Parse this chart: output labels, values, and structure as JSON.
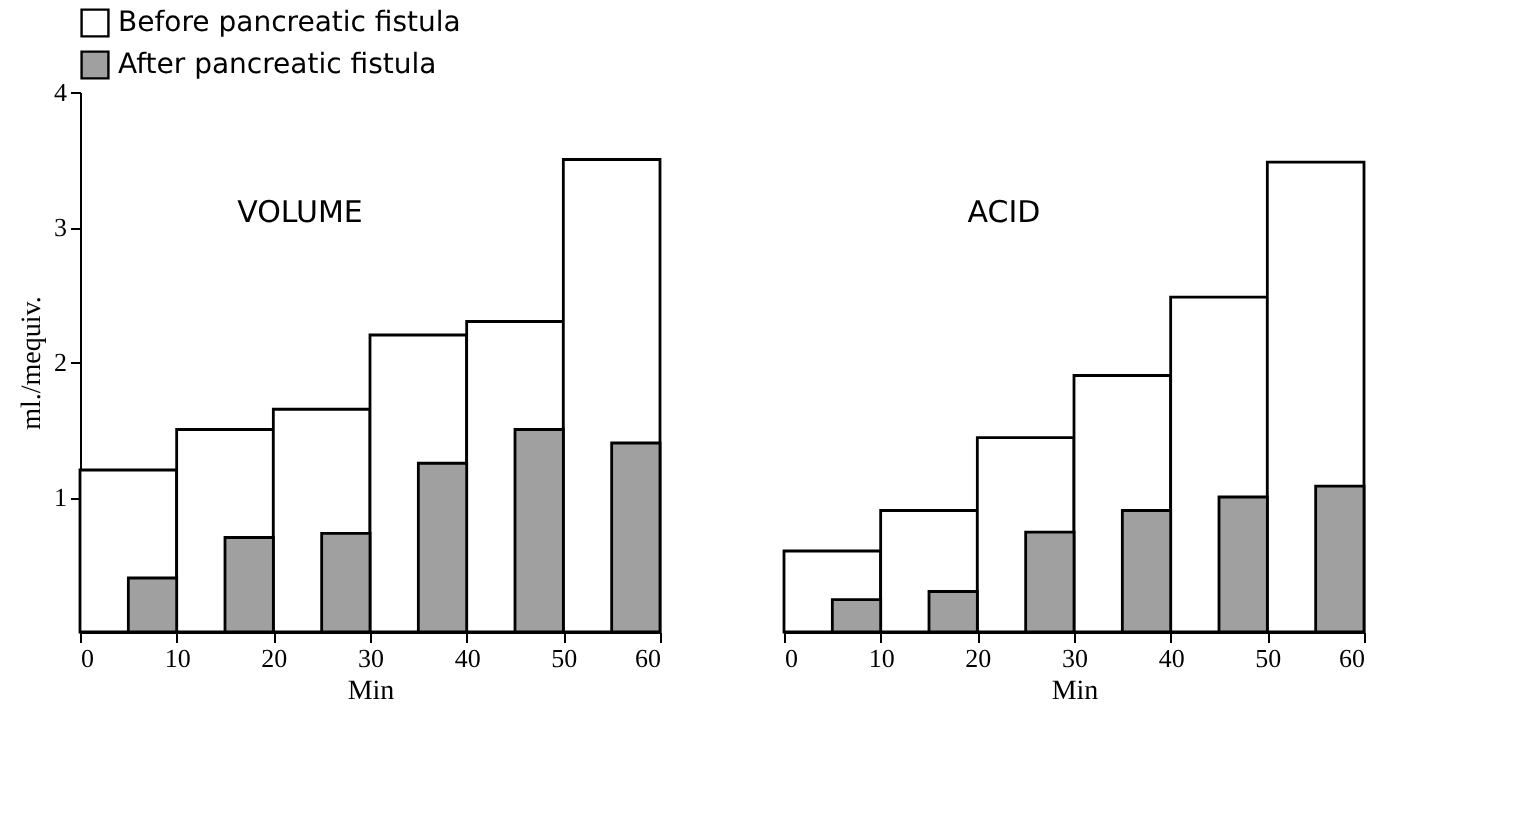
{
  "chart_data": [
    {
      "type": "bar",
      "xlabel": "Min",
      "ylabel": "ml./mequiv.",
      "annotations": [
        "VOLUME"
      ],
      "legend": "top",
      "grid": false,
      "xlim": [
        0,
        60
      ],
      "xticks": [
        0,
        10,
        20,
        30,
        40,
        50,
        60
      ],
      "ylim": [
        0,
        4
      ],
      "yticks": [
        1,
        2,
        3,
        4
      ],
      "series": [
        {
          "name": "Before pancreatic fistula",
          "color": "#ffffff",
          "x": [
            5,
            15,
            25,
            35,
            45,
            55
          ],
          "values": [
            1.2,
            1.5,
            1.65,
            2.2,
            2.3,
            3.5
          ]
        },
        {
          "name": "After pancreatic fistula",
          "color": "#a0a0a0",
          "x": [
            7.5,
            17.5,
            27.5,
            37.5,
            47.5,
            57.5
          ],
          "values": [
            0.4,
            0.7,
            0.73,
            1.25,
            1.5,
            1.4
          ]
        }
      ]
    },
    {
      "type": "bar",
      "xlabel": "Min",
      "annotations": [
        "ACID"
      ],
      "legend": false,
      "grid": false,
      "tick_labels": "x",
      "xlim": [
        0,
        60
      ],
      "xticks": [
        0,
        10,
        20,
        30,
        40,
        50,
        60
      ],
      "ylim": [
        0,
        4
      ],
      "series": [
        {
          "color": "#ffffff",
          "x": [
            5,
            15,
            25,
            35,
            45,
            55
          ],
          "values": [
            0.6,
            0.9,
            1.44,
            1.9,
            2.48,
            3.48
          ]
        },
        {
          "color": "#a0a0a0",
          "x": [
            7.5,
            17.5,
            27.5,
            37.5,
            47.5,
            57.5
          ],
          "values": [
            0.24,
            0.3,
            0.74,
            0.9,
            1.0,
            1.08
          ]
        }
      ]
    }
  ]
}
